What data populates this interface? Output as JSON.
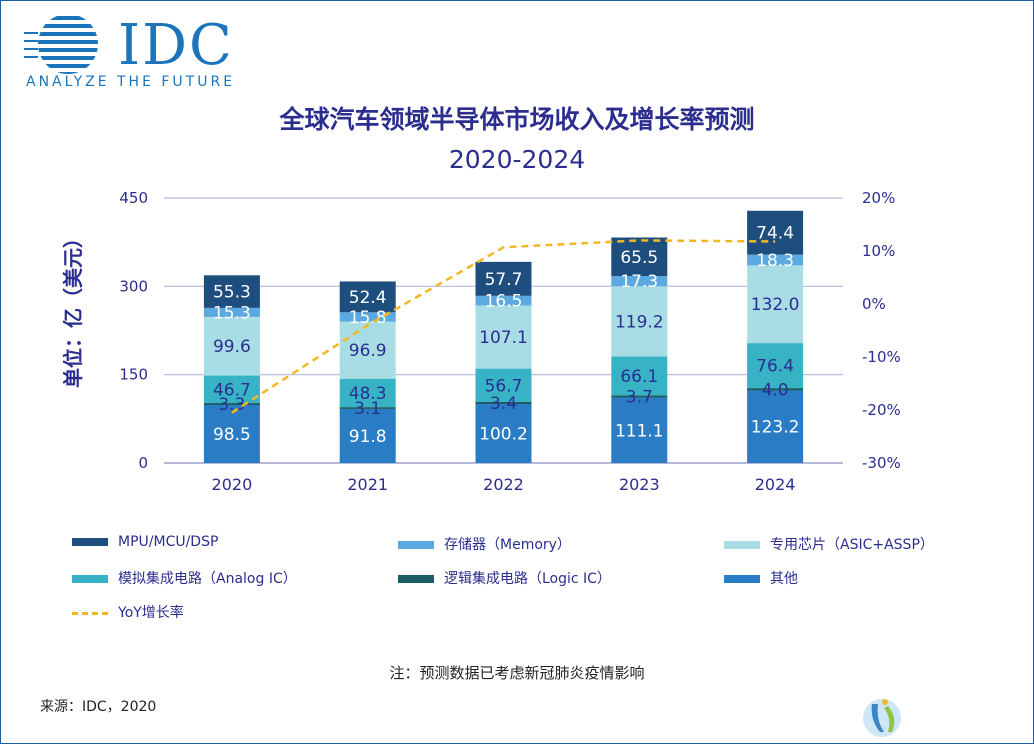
{
  "brand": {
    "name": "IDC",
    "tagline": "ANALYZE THE FUTURE"
  },
  "chart_data": {
    "type": "bar",
    "stacked": true,
    "title": "全球汽车领域半导体市场收入及增长率预测",
    "subtitle": "2020-2024",
    "ylabel": "单位：亿（美元）",
    "ylim": [
      0,
      450
    ],
    "yticks": [
      "0",
      "150",
      "300",
      "450"
    ],
    "y2lim": [
      -30,
      20
    ],
    "y2ticks": [
      "-30%",
      "-20%",
      "-10%",
      "0%",
      "10%",
      "20%"
    ],
    "categories": [
      "2020",
      "2021",
      "2022",
      "2023",
      "2024"
    ],
    "series": [
      {
        "name": "其他",
        "color": "#2a7dc4",
        "values": [
          98.5,
          91.8,
          100.2,
          111.1,
          123.2
        ],
        "labels": [
          "98.5",
          "91.8",
          "100.2",
          "111.1",
          "123.2"
        ],
        "label_color": "#ffffff"
      },
      {
        "name": "逻辑集成电路（Logic IC）",
        "color": "#1a5e63",
        "values": [
          3.3,
          3.1,
          3.4,
          3.7,
          4.0
        ],
        "labels": [
          "3.3",
          "3.1",
          "3.4",
          "3.7",
          "4.0"
        ],
        "label_color": "#2b2e8f"
      },
      {
        "name": "模拟集成电路（Analog IC）",
        "color": "#38b3c6",
        "values": [
          46.7,
          48.3,
          56.7,
          66.1,
          76.4
        ],
        "labels": [
          "46.7",
          "48.3",
          "56.7",
          "66.1",
          "76.4"
        ],
        "label_color": "#2b2e8f"
      },
      {
        "name": "专用芯片（ASIC+ASSP）",
        "color": "#a9dde6",
        "values": [
          99.6,
          96.9,
          107.1,
          119.2,
          132.0
        ],
        "labels": [
          "99.6",
          "96.9",
          "107.1",
          "119.2",
          "132.0"
        ],
        "label_color": "#2b2e8f"
      },
      {
        "name": "存储器（Memory）",
        "color": "#5ba9e0",
        "values": [
          15.3,
          15.8,
          16.5,
          17.3,
          18.3
        ],
        "labels": [
          "15.3",
          "15.8",
          "16.5",
          "17.3",
          "18.3"
        ],
        "label_color": "#ffffff"
      },
      {
        "name": "MPU/MCU/DSP",
        "color": "#1e4e7e",
        "values": [
          55.3,
          52.4,
          57.7,
          65.5,
          74.4
        ],
        "labels": [
          "55.3",
          "52.4",
          "57.7",
          "65.5",
          "74.4"
        ],
        "label_color": "#ffffff"
      }
    ],
    "line": {
      "name": "YoY增长率",
      "color": "#f2b824",
      "values": [
        -20.5,
        -4.0,
        10.7,
        12.0,
        11.8
      ],
      "axis": "right"
    },
    "grid": true,
    "legend_position": "bottom"
  },
  "legend": {
    "items": [
      {
        "label": "MPU/MCU/DSP",
        "color": "#1e4e7e"
      },
      {
        "label": "存储器（Memory）",
        "color": "#5ba9e0"
      },
      {
        "label": "专用芯片（ASIC+ASSP）",
        "color": "#a9dde6"
      },
      {
        "label": "模拟集成电路（Analog IC）",
        "color": "#38b3c6"
      },
      {
        "label": "逻辑集成电路（Logic IC）",
        "color": "#1a5e63"
      },
      {
        "label": "其他",
        "color": "#2a7dc4"
      },
      {
        "label": "YoY增长率",
        "color": "#f2b824"
      }
    ]
  },
  "footer": {
    "note": "注：预测数据已考虑新冠肺炎疫情影响",
    "source": "来源：IDC，2020"
  }
}
